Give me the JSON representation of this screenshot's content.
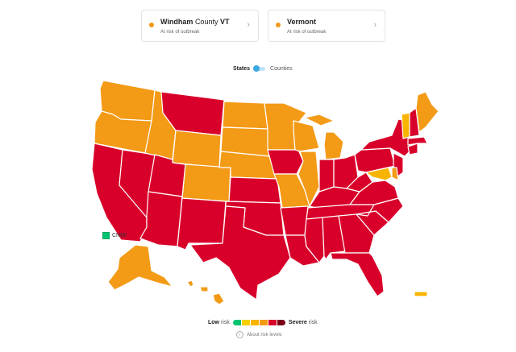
{
  "cards": [
    {
      "name_bold": "Windham",
      "name_light": "County",
      "name_bold2": "VT",
      "status": "At risk of outbreak",
      "dot_color": "#f39a16"
    },
    {
      "name_bold": "Vermont",
      "name_light": "",
      "name_bold2": "",
      "status": "At risk of outbreak",
      "dot_color": "#f39a16"
    }
  ],
  "toggle": {
    "option_a": "States",
    "option_b": "Counties",
    "selected": "States"
  },
  "territory": {
    "label": "CNMI",
    "color": "#00c36f"
  },
  "legend": {
    "low_bold": "Low",
    "low_rest": "risk",
    "high_bold": "Severe",
    "high_rest": "risk",
    "colors": [
      "#00c36f",
      "#f4d000",
      "#f8b400",
      "#f39a16",
      "#d8002a",
      "#7a0015"
    ]
  },
  "about_link": "About risk levels",
  "colors": {
    "orange": "#f39a16",
    "red": "#d8002a",
    "yellow": "#f8b400",
    "border": "#ffffff"
  }
}
